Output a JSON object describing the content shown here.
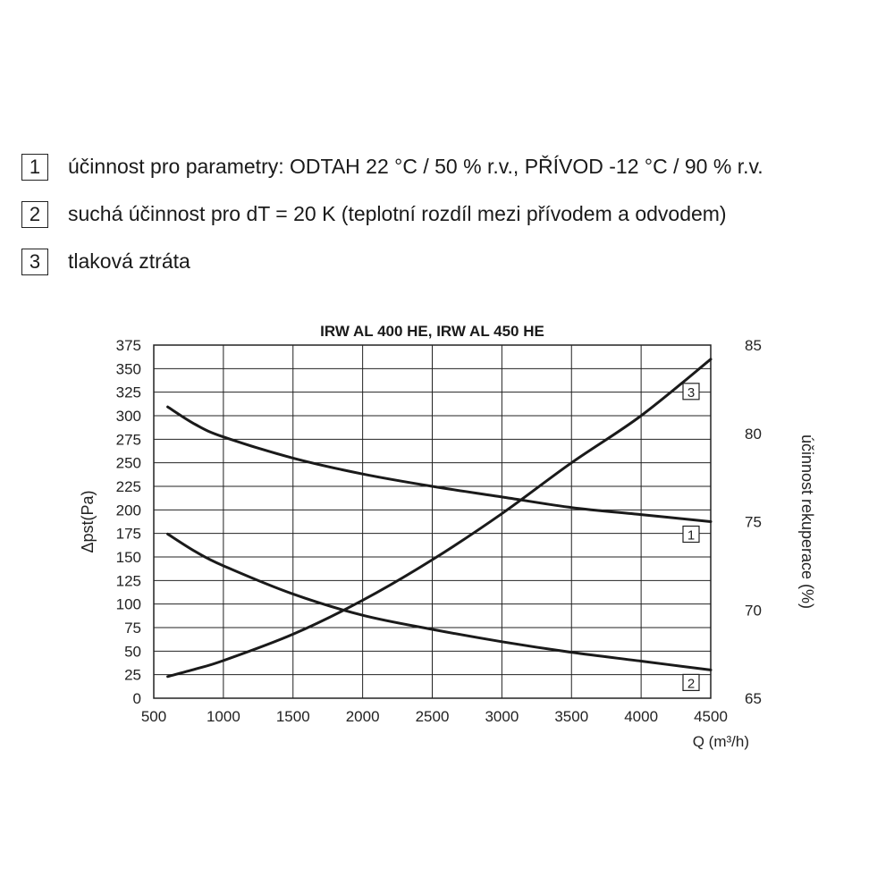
{
  "legend": [
    {
      "number": "1",
      "label": "účinnost pro parametry: ODTAH 22 °C / 50 % r.v., PŘÍVOD -12 °C / 90 % r.v."
    },
    {
      "number": "2",
      "label": "suchá účinnost pro dT = 20 K (teplotní rozdíl mezi přívodem a odvodem)"
    },
    {
      "number": "3",
      "label": "tlaková ztráta"
    }
  ],
  "chart_data": {
    "type": "line",
    "title": "IRW AL 400 HE, IRW AL 450 HE",
    "xlabel": "Q (m³/h)",
    "ylabel_left": "Δpst(Pa)",
    "ylabel_right": "účinnost rekuperace (%)",
    "xlim": [
      500,
      4500
    ],
    "ylim_left": [
      0,
      375
    ],
    "ylim_right": [
      65,
      85
    ],
    "x_ticks": [
      "500",
      "1000",
      "1500",
      "2000",
      "2500",
      "3000",
      "3500",
      "4000",
      "4500"
    ],
    "y_left_ticks": [
      "0",
      "25",
      "50",
      "75",
      "100",
      "125",
      "150",
      "175",
      "200",
      "225",
      "250",
      "275",
      "300",
      "325",
      "350",
      "375"
    ],
    "y_right_ticks": [
      "65",
      "70",
      "75",
      "80",
      "85"
    ],
    "grid": true,
    "series": [
      {
        "name": "1",
        "axis": "right",
        "x": [
          600,
          800,
          1000,
          1500,
          2000,
          2500,
          3000,
          3500,
          4000,
          4500
        ],
        "values": [
          81.5,
          80.5,
          79.8,
          78.6,
          77.7,
          77.0,
          76.4,
          75.8,
          75.4,
          75.0
        ]
      },
      {
        "name": "2",
        "axis": "right",
        "x": [
          600,
          800,
          1000,
          1500,
          2000,
          2500,
          3000,
          3500,
          4000,
          4500
        ],
        "values": [
          74.3,
          73.3,
          72.5,
          70.9,
          69.7,
          68.9,
          68.2,
          67.6,
          67.1,
          66.6
        ]
      },
      {
        "name": "3",
        "axis": "left",
        "x": [
          600,
          800,
          1000,
          1500,
          2000,
          2500,
          3000,
          3500,
          4000,
          4500
        ],
        "values": [
          23,
          31,
          40,
          68,
          104,
          147,
          196,
          250,
          300,
          360
        ]
      }
    ]
  }
}
